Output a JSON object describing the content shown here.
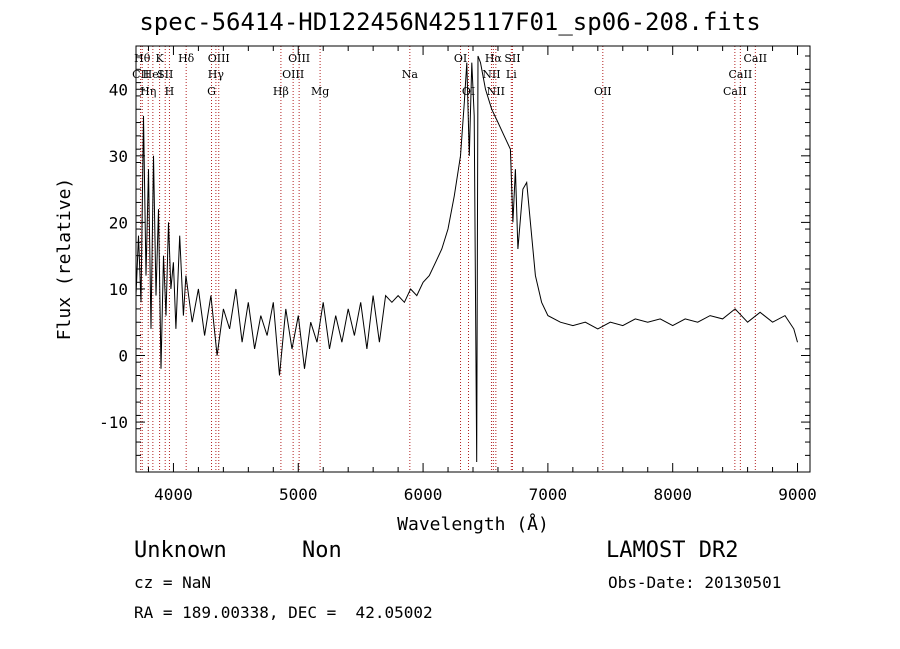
{
  "chart_data": {
    "type": "line",
    "title": "spec-56414-HD122456N425117F01_sp06-208.fits",
    "xlabel": "Wavelength (Å)",
    "ylabel": "Flux (relative)",
    "xlim": [
      3700,
      9100
    ],
    "ylim": [
      -17.5,
      46.5
    ],
    "xticks": [
      4000,
      5000,
      6000,
      7000,
      8000,
      9000
    ],
    "yticks": [
      -10,
      0,
      10,
      20,
      30,
      40
    ],
    "series": [
      {
        "values": [
          [
            3700,
            9
          ],
          [
            3720,
            18
          ],
          [
            3740,
            8
          ],
          [
            3760,
            36
          ],
          [
            3780,
            12
          ],
          [
            3800,
            28
          ],
          [
            3820,
            4
          ],
          [
            3840,
            30
          ],
          [
            3860,
            9
          ],
          [
            3880,
            22
          ],
          [
            3900,
            -2
          ],
          [
            3920,
            15
          ],
          [
            3940,
            6
          ],
          [
            3960,
            20
          ],
          [
            3980,
            10
          ],
          [
            4000,
            14
          ],
          [
            4020,
            4
          ],
          [
            4050,
            18
          ],
          [
            4080,
            6
          ],
          [
            4100,
            12
          ],
          [
            4150,
            5
          ],
          [
            4200,
            10
          ],
          [
            4250,
            3
          ],
          [
            4300,
            9
          ],
          [
            4350,
            0
          ],
          [
            4400,
            7
          ],
          [
            4450,
            4
          ],
          [
            4500,
            10
          ],
          [
            4550,
            2
          ],
          [
            4600,
            8
          ],
          [
            4650,
            1
          ],
          [
            4700,
            6
          ],
          [
            4750,
            3
          ],
          [
            4800,
            8
          ],
          [
            4850,
            -3
          ],
          [
            4900,
            7
          ],
          [
            4950,
            1
          ],
          [
            5000,
            6
          ],
          [
            5050,
            -2
          ],
          [
            5100,
            5
          ],
          [
            5150,
            2
          ],
          [
            5200,
            8
          ],
          [
            5250,
            1
          ],
          [
            5300,
            6
          ],
          [
            5350,
            2
          ],
          [
            5400,
            7
          ],
          [
            5450,
            3
          ],
          [
            5500,
            8
          ],
          [
            5550,
            1
          ],
          [
            5600,
            9
          ],
          [
            5650,
            2
          ],
          [
            5700,
            9
          ],
          [
            5750,
            8
          ],
          [
            5800,
            9
          ],
          [
            5850,
            8
          ],
          [
            5900,
            10
          ],
          [
            5950,
            9
          ],
          [
            6000,
            11
          ],
          [
            6050,
            12
          ],
          [
            6100,
            14
          ],
          [
            6150,
            16
          ],
          [
            6200,
            19
          ],
          [
            6250,
            24
          ],
          [
            6300,
            30
          ],
          [
            6330,
            38
          ],
          [
            6350,
            44
          ],
          [
            6370,
            30
          ],
          [
            6390,
            44
          ],
          [
            6410,
            36
          ],
          [
            6430,
            -16
          ],
          [
            6440,
            45
          ],
          [
            6460,
            44
          ],
          [
            6500,
            40
          ],
          [
            6550,
            37
          ],
          [
            6600,
            35
          ],
          [
            6650,
            33
          ],
          [
            6700,
            31
          ],
          [
            6720,
            20
          ],
          [
            6740,
            28
          ],
          [
            6760,
            16
          ],
          [
            6800,
            25
          ],
          [
            6830,
            26
          ],
          [
            6860,
            20
          ],
          [
            6900,
            12
          ],
          [
            6950,
            8
          ],
          [
            7000,
            6
          ],
          [
            7100,
            5
          ],
          [
            7200,
            4.5
          ],
          [
            7300,
            5
          ],
          [
            7400,
            4
          ],
          [
            7500,
            5
          ],
          [
            7600,
            4.5
          ],
          [
            7700,
            5.5
          ],
          [
            7800,
            5
          ],
          [
            7900,
            5.5
          ],
          [
            8000,
            4.5
          ],
          [
            8100,
            5.5
          ],
          [
            8200,
            5
          ],
          [
            8300,
            6
          ],
          [
            8400,
            5.5
          ],
          [
            8500,
            7
          ],
          [
            8600,
            5
          ],
          [
            8700,
            6.5
          ],
          [
            8800,
            5
          ],
          [
            8900,
            6
          ],
          [
            8970,
            4
          ],
          [
            9000,
            2
          ]
        ]
      }
    ],
    "lines": [
      {
        "label": "CII",
        "x": 3737,
        "row": 2
      },
      {
        "label": "Hθ",
        "x": 3750,
        "row": 1
      },
      {
        "label": "Hη",
        "x": 3798,
        "row": 3
      },
      {
        "label": "HeI",
        "x": 3835,
        "row": 2
      },
      {
        "label": "K",
        "x": 3889,
        "row": 1
      },
      {
        "label": "SII",
        "x": 3934,
        "row": 2
      },
      {
        "label": "H",
        "x": 3968,
        "row": 3
      },
      {
        "label": "Hδ",
        "x": 4102,
        "row": 1
      },
      {
        "label": "G",
        "x": 4305,
        "row": 3
      },
      {
        "label": "Hγ",
        "x": 4340,
        "row": 2
      },
      {
        "label": "OIII",
        "x": 4363,
        "row": 1
      },
      {
        "label": "Hβ",
        "x": 4861,
        "row": 3
      },
      {
        "label": "OIII",
        "x": 4959,
        "row": 2
      },
      {
        "label": "OIII",
        "x": 5007,
        "row": 1
      },
      {
        "label": "Mg",
        "x": 5175,
        "row": 3
      },
      {
        "label": "Na",
        "x": 5894,
        "row": 2
      },
      {
        "label": "OI",
        "x": 6300,
        "row": 1
      },
      {
        "label": "OI",
        "x": 6364,
        "row": 3
      },
      {
        "label": "NII",
        "x": 6548,
        "row": 2
      },
      {
        "label": "Hα",
        "x": 6563,
        "row": 1
      },
      {
        "label": "NII",
        "x": 6583,
        "row": 3
      },
      {
        "label": "Li",
        "x": 6707,
        "row": 2
      },
      {
        "label": "SII",
        "x": 6716,
        "row": 1
      },
      {
        "label": "OII",
        "x": 7440,
        "row": 3
      },
      {
        "label": "CaII",
        "x": 8498,
        "row": 3
      },
      {
        "label": "CaII",
        "x": 8542,
        "row": 2
      },
      {
        "label": "CaII",
        "x": 8662,
        "row": 1
      }
    ]
  },
  "info": {
    "class": "Unknown",
    "subclass": "Non",
    "survey": "LAMOST DR2",
    "cz": "cz = NaN",
    "obs_date": "Obs-Date: 20130501",
    "radec": "RA = 189.00338, DEC =  42.05002"
  }
}
